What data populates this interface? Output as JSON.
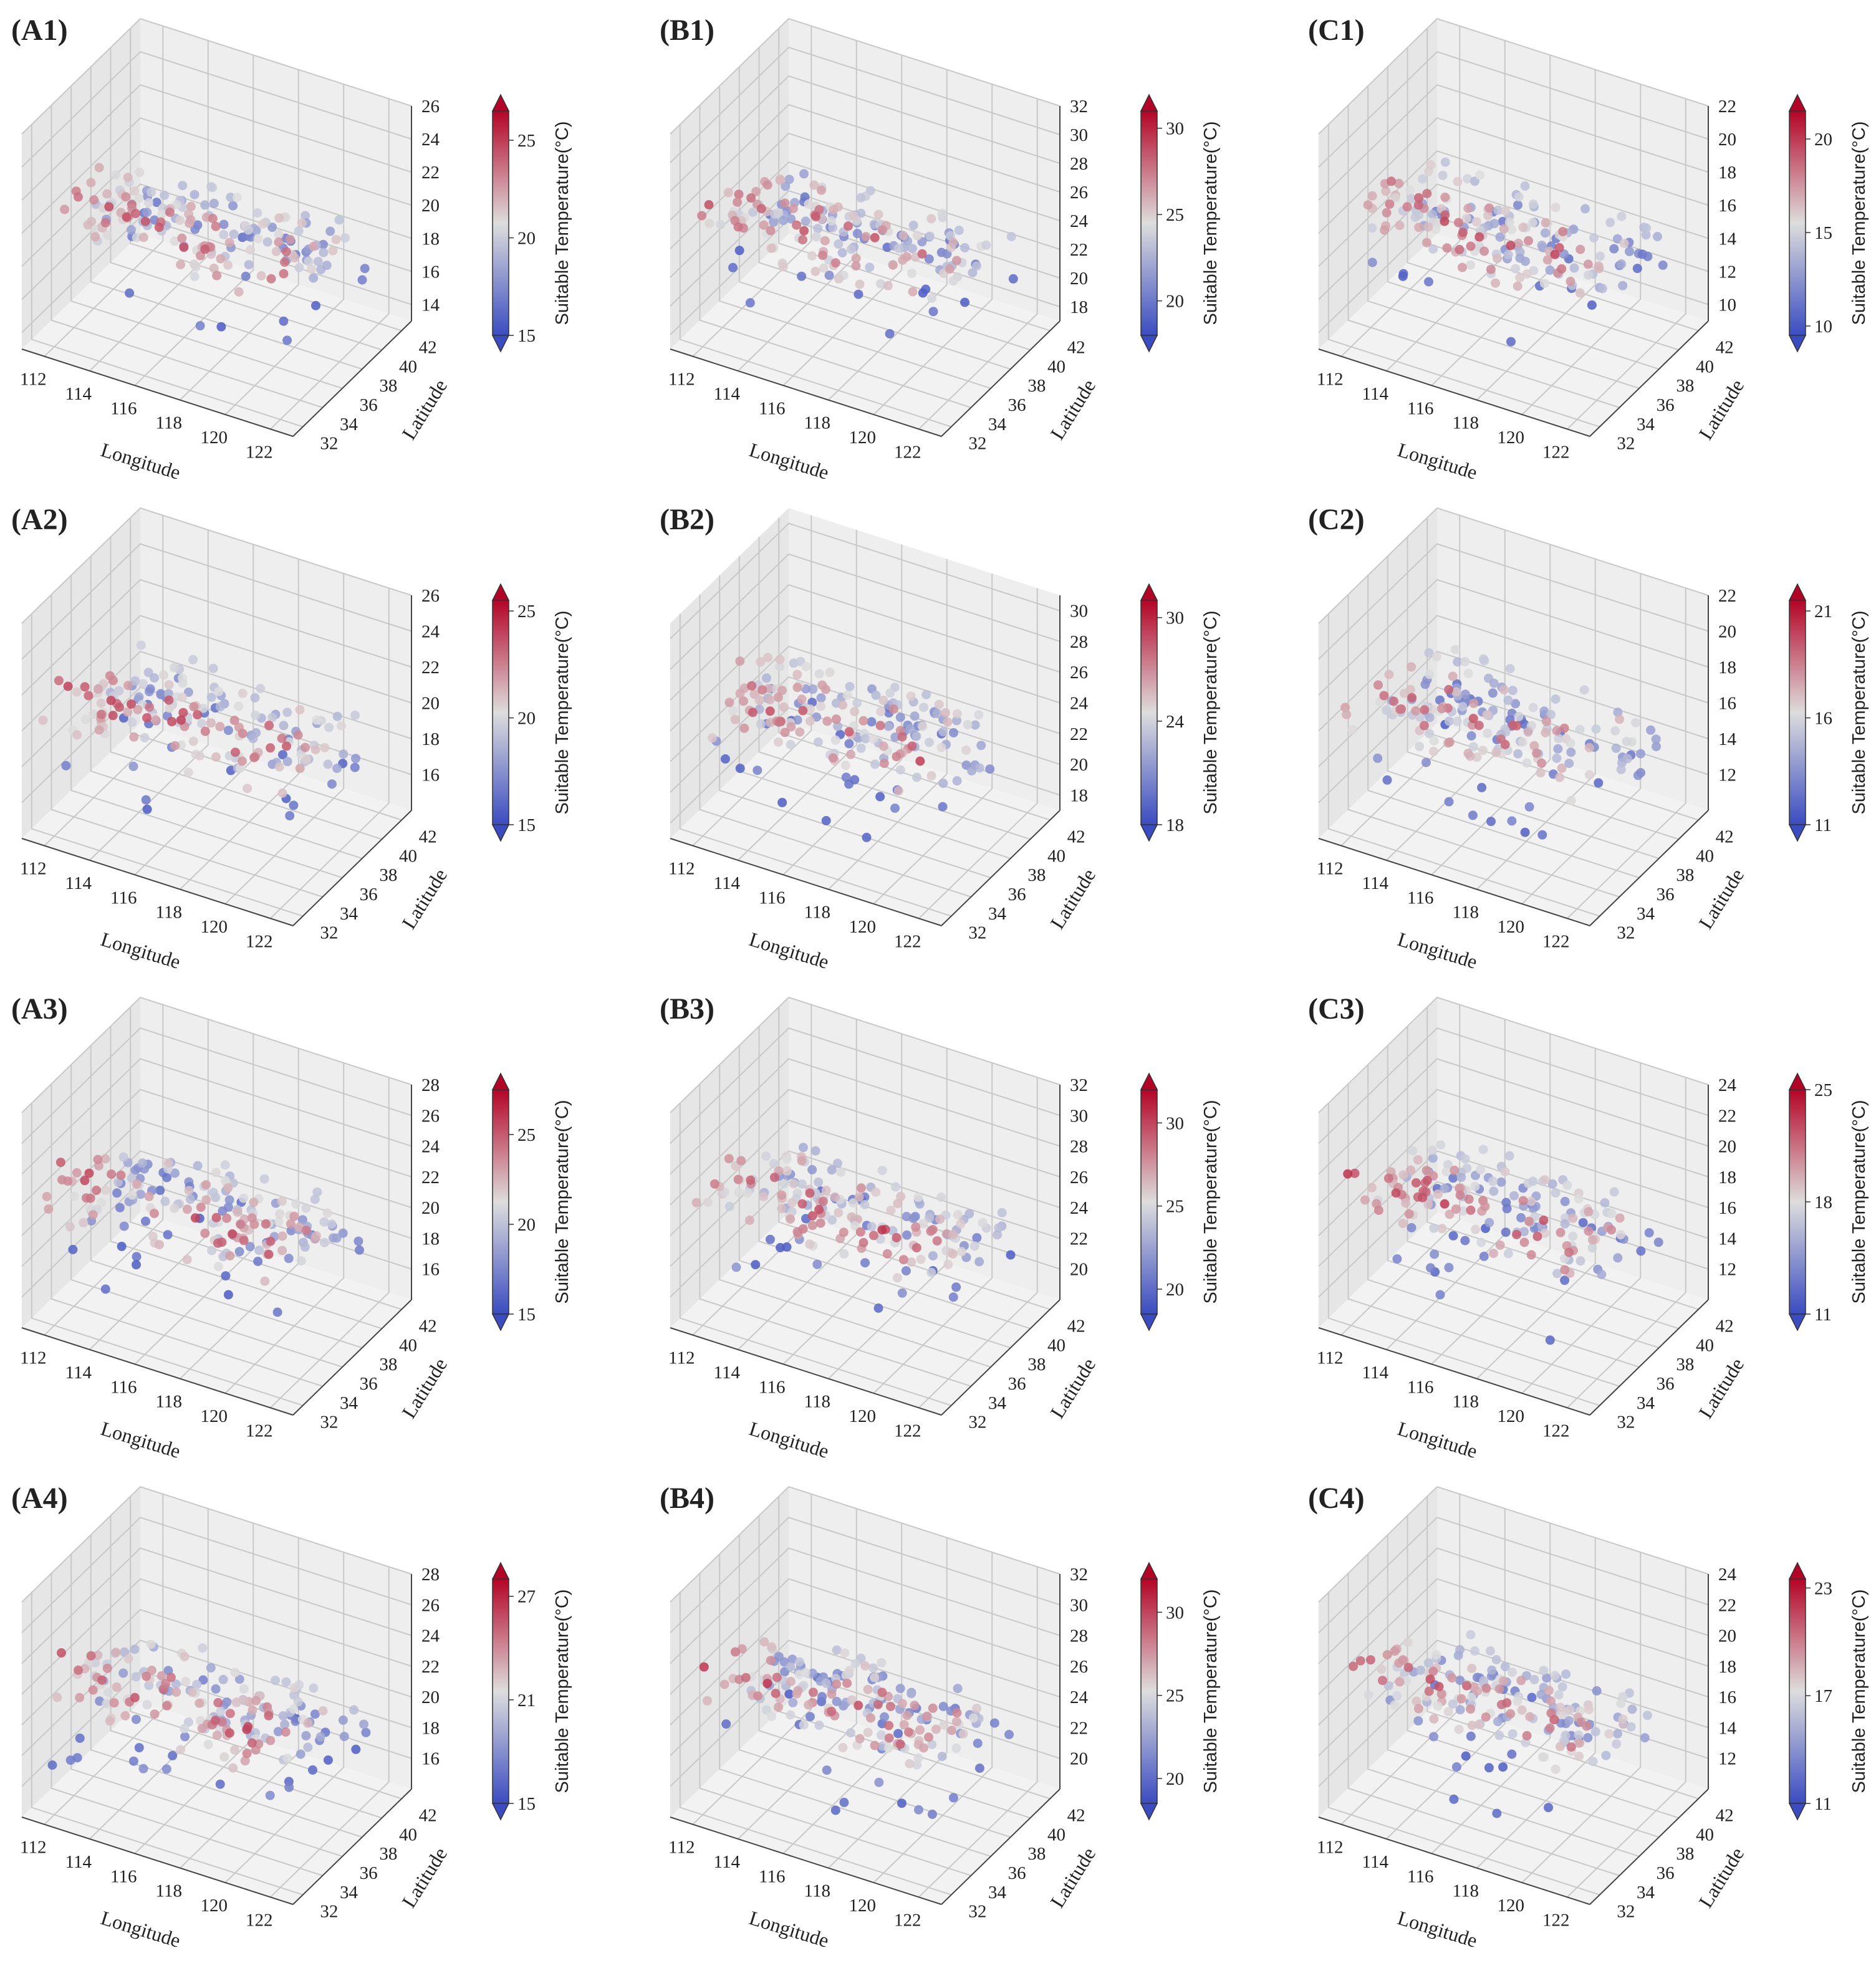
{
  "figure": {
    "panel_order": [
      "A1",
      "B1",
      "C1",
      "A2",
      "B2",
      "C2",
      "A3",
      "B3",
      "C3",
      "A4",
      "B4",
      "C4"
    ]
  },
  "colors": {
    "cold": "#3b4cc0",
    "neutral": "#dddddd",
    "hot": "#b40426",
    "pane_left": "#e6e6e6",
    "pane_back": "#eeeeee",
    "pane_floor": "#f2f2f2",
    "grid": "#c8c8c8"
  },
  "chart_data": [
    {
      "id": "A1",
      "type": "scatter",
      "title": "(A1)",
      "xlabel": "Longitude",
      "ylabel": "Latitude",
      "zlabel": "",
      "colorbar_label": "Suitable Temperature(°C)",
      "x_ticks": [
        "112",
        "114",
        "116",
        "118",
        "120",
        "122"
      ],
      "y_ticks": [
        "32",
        "34",
        "36",
        "38",
        "40",
        "42"
      ],
      "z_ticks": [
        "14",
        "16",
        "18",
        "20",
        "22",
        "24",
        "26"
      ],
      "zlim": [
        13,
        26
      ],
      "xlim": [
        111,
        123
      ],
      "ylim": [
        31,
        43
      ],
      "colorbar_ticks": [
        "15",
        "20",
        "25"
      ],
      "clim": [
        15,
        26.5
      ],
      "seed": 11
    },
    {
      "id": "B1",
      "type": "scatter",
      "title": "(B1)",
      "xlabel": "Longitude",
      "ylabel": "Latitude",
      "zlabel": "",
      "colorbar_label": "Suitable Temperature(°C)",
      "x_ticks": [
        "112",
        "114",
        "116",
        "118",
        "120",
        "122"
      ],
      "y_ticks": [
        "32",
        "34",
        "36",
        "38",
        "40",
        "42"
      ],
      "z_ticks": [
        "18",
        "20",
        "22",
        "24",
        "26",
        "28",
        "30",
        "32"
      ],
      "zlim": [
        17,
        32
      ],
      "xlim": [
        111,
        123
      ],
      "ylim": [
        31,
        43
      ],
      "colorbar_ticks": [
        "20",
        "25",
        "30"
      ],
      "clim": [
        18,
        31
      ],
      "seed": 12
    },
    {
      "id": "C1",
      "type": "scatter",
      "title": "(C1)",
      "xlabel": "Longitude",
      "ylabel": "Latitude",
      "zlabel": "",
      "colorbar_label": "Suitable Temperature(°C)",
      "x_ticks": [
        "112",
        "114",
        "116",
        "118",
        "120",
        "122"
      ],
      "y_ticks": [
        "32",
        "34",
        "36",
        "38",
        "40",
        "42"
      ],
      "z_ticks": [
        "10",
        "12",
        "14",
        "16",
        "18",
        "20",
        "22"
      ],
      "zlim": [
        9,
        22
      ],
      "xlim": [
        111,
        123
      ],
      "ylim": [
        31,
        43
      ],
      "colorbar_ticks": [
        "10",
        "15",
        "20"
      ],
      "clim": [
        9.5,
        21.5
      ],
      "seed": 13
    },
    {
      "id": "A2",
      "type": "scatter",
      "title": "(A2)",
      "xlabel": "Longitude",
      "ylabel": "Latitude",
      "zlabel": "",
      "colorbar_label": "Suitable Temperature(°C)",
      "x_ticks": [
        "112",
        "114",
        "116",
        "118",
        "120",
        "122"
      ],
      "y_ticks": [
        "32",
        "34",
        "36",
        "38",
        "40",
        "42"
      ],
      "z_ticks": [
        "16",
        "18",
        "20",
        "22",
        "24",
        "26"
      ],
      "zlim": [
        14,
        26
      ],
      "xlim": [
        111,
        123
      ],
      "ylim": [
        31,
        43
      ],
      "colorbar_ticks": [
        "15",
        "20",
        "25"
      ],
      "clim": [
        15,
        25.5
      ],
      "seed": 21
    },
    {
      "id": "B2",
      "type": "scatter",
      "title": "(B2)",
      "xlabel": "Longitude",
      "ylabel": "Latitude",
      "zlabel": "",
      "colorbar_label": "Suitable Temperature(°C)",
      "x_ticks": [
        "112",
        "114",
        "116",
        "118",
        "120",
        "122"
      ],
      "y_ticks": [
        "32",
        "34",
        "36",
        "38",
        "40",
        "42"
      ],
      "z_ticks": [
        "18",
        "20",
        "22",
        "24",
        "26",
        "28",
        "30"
      ],
      "zlim": [
        17,
        31
      ],
      "xlim": [
        111,
        123
      ],
      "ylim": [
        31,
        43
      ],
      "colorbar_ticks": [
        "18",
        "24",
        "30"
      ],
      "clim": [
        18,
        31
      ],
      "seed": 22
    },
    {
      "id": "C2",
      "type": "scatter",
      "title": "(C2)",
      "xlabel": "Longitude",
      "ylabel": "Latitude",
      "zlabel": "",
      "colorbar_label": "Suitable Temperature(°C)",
      "x_ticks": [
        "112",
        "114",
        "116",
        "118",
        "120",
        "122"
      ],
      "y_ticks": [
        "32",
        "34",
        "36",
        "38",
        "40",
        "42"
      ],
      "z_ticks": [
        "12",
        "14",
        "16",
        "18",
        "20",
        "22"
      ],
      "zlim": [
        10,
        22
      ],
      "xlim": [
        111,
        123
      ],
      "ylim": [
        31,
        43
      ],
      "colorbar_ticks": [
        "11",
        "16",
        "21"
      ],
      "clim": [
        11,
        21.5
      ],
      "seed": 23
    },
    {
      "id": "A3",
      "type": "scatter",
      "title": "(A3)",
      "xlabel": "Longitude",
      "ylabel": "Latitude",
      "zlabel": "",
      "colorbar_label": "Suitable Temperature(°C)",
      "x_ticks": [
        "112",
        "114",
        "116",
        "118",
        "120",
        "122"
      ],
      "y_ticks": [
        "32",
        "34",
        "36",
        "38",
        "40",
        "42"
      ],
      "z_ticks": [
        "16",
        "18",
        "20",
        "22",
        "24",
        "26",
        "28"
      ],
      "zlim": [
        14,
        28
      ],
      "xlim": [
        111,
        123
      ],
      "ylim": [
        31,
        43
      ],
      "colorbar_ticks": [
        "15",
        "20",
        "25"
      ],
      "clim": [
        15,
        27.5
      ],
      "seed": 31
    },
    {
      "id": "B3",
      "type": "scatter",
      "title": "(B3)",
      "xlabel": "Longitude",
      "ylabel": "Latitude",
      "zlabel": "",
      "colorbar_label": "Suitable Temperature(°C)",
      "x_ticks": [
        "112",
        "114",
        "116",
        "118",
        "120",
        "122"
      ],
      "y_ticks": [
        "32",
        "34",
        "36",
        "38",
        "40",
        "42"
      ],
      "z_ticks": [
        "20",
        "22",
        "24",
        "26",
        "28",
        "30",
        "32"
      ],
      "zlim": [
        18,
        32
      ],
      "xlim": [
        111,
        123
      ],
      "ylim": [
        31,
        43
      ],
      "colorbar_ticks": [
        "20",
        "25",
        "30"
      ],
      "clim": [
        18.5,
        32
      ],
      "seed": 32
    },
    {
      "id": "C3",
      "type": "scatter",
      "title": "(C3)",
      "xlabel": "Longitude",
      "ylabel": "Latitude",
      "zlabel": "",
      "colorbar_label": "Suitable Temperature(°C)",
      "x_ticks": [
        "112",
        "114",
        "116",
        "118",
        "120",
        "122"
      ],
      "y_ticks": [
        "32",
        "34",
        "36",
        "38",
        "40",
        "42"
      ],
      "z_ticks": [
        "12",
        "14",
        "16",
        "18",
        "20",
        "22",
        "24"
      ],
      "zlim": [
        10,
        24
      ],
      "xlim": [
        111,
        123
      ],
      "ylim": [
        31,
        43
      ],
      "colorbar_ticks": [
        "11",
        "18",
        "25"
      ],
      "clim": [
        11,
        25
      ],
      "seed": 33
    },
    {
      "id": "A4",
      "type": "scatter",
      "title": "(A4)",
      "xlabel": "Longitude",
      "ylabel": "Latitude",
      "zlabel": "",
      "colorbar_label": "Suitable Temperature(°C)",
      "x_ticks": [
        "112",
        "114",
        "116",
        "118",
        "120",
        "122"
      ],
      "y_ticks": [
        "32",
        "34",
        "36",
        "38",
        "40",
        "42"
      ],
      "z_ticks": [
        "16",
        "18",
        "20",
        "22",
        "24",
        "26",
        "28"
      ],
      "zlim": [
        14,
        28
      ],
      "xlim": [
        111,
        123
      ],
      "ylim": [
        31,
        43
      ],
      "colorbar_ticks": [
        "15",
        "21",
        "27"
      ],
      "clim": [
        15,
        28
      ],
      "seed": 41
    },
    {
      "id": "B4",
      "type": "scatter",
      "title": "(B4)",
      "xlabel": "Longitude",
      "ylabel": "Latitude",
      "zlabel": "",
      "colorbar_label": "Suitable Temperature(°C)",
      "x_ticks": [
        "112",
        "114",
        "116",
        "118",
        "120",
        "122"
      ],
      "y_ticks": [
        "32",
        "34",
        "36",
        "38",
        "40",
        "42"
      ],
      "z_ticks": [
        "20",
        "22",
        "24",
        "26",
        "28",
        "30",
        "32"
      ],
      "zlim": [
        18,
        32
      ],
      "xlim": [
        111,
        123
      ],
      "ylim": [
        31,
        43
      ],
      "colorbar_ticks": [
        "20",
        "25",
        "30"
      ],
      "clim": [
        18.5,
        32
      ],
      "seed": 42
    },
    {
      "id": "C4",
      "type": "scatter",
      "title": "(C4)",
      "xlabel": "Longitude",
      "ylabel": "Latitude",
      "zlabel": "",
      "colorbar_label": "Suitable Temperature(°C)",
      "x_ticks": [
        "112",
        "114",
        "116",
        "118",
        "120",
        "122"
      ],
      "y_ticks": [
        "32",
        "34",
        "36",
        "38",
        "40",
        "42"
      ],
      "z_ticks": [
        "12",
        "14",
        "16",
        "18",
        "20",
        "22",
        "24"
      ],
      "zlim": [
        10,
        24
      ],
      "xlim": [
        111,
        123
      ],
      "ylim": [
        31,
        43
      ],
      "colorbar_ticks": [
        "11",
        "17",
        "23"
      ],
      "clim": [
        11,
        23.5
      ],
      "seed": 43
    }
  ]
}
